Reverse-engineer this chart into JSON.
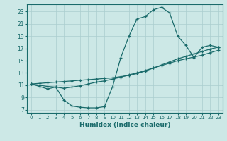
{
  "xlabel": "Humidex (Indice chaleur)",
  "bg_color": "#cce8e6",
  "line_color": "#1a6b6b",
  "grid_color": "#aacece",
  "xlim": [
    -0.5,
    23.5
  ],
  "ylim": [
    6.5,
    24.2
  ],
  "xticks": [
    0,
    1,
    2,
    3,
    4,
    5,
    6,
    7,
    8,
    9,
    10,
    11,
    12,
    13,
    14,
    15,
    16,
    17,
    18,
    19,
    20,
    21,
    22,
    23
  ],
  "yticks": [
    7,
    9,
    11,
    13,
    15,
    17,
    19,
    21,
    23
  ],
  "line1_x": [
    0,
    1,
    2,
    3,
    4,
    5,
    6,
    7,
    8,
    9,
    10,
    11,
    12,
    13,
    14,
    15,
    16,
    17,
    18,
    19,
    20,
    21,
    22,
    23
  ],
  "line1_y": [
    11.2,
    10.8,
    10.4,
    10.7,
    8.6,
    7.6,
    7.4,
    7.3,
    7.3,
    7.5,
    10.8,
    15.5,
    19.0,
    21.8,
    22.2,
    23.3,
    23.7,
    22.8,
    19.0,
    17.5,
    15.5,
    17.2,
    17.5,
    17.2
  ],
  "line2_x": [
    0,
    1,
    2,
    3,
    4,
    5,
    6,
    7,
    8,
    9,
    10,
    11,
    12,
    13,
    14,
    15,
    16,
    17,
    18,
    19,
    20,
    21,
    22,
    23
  ],
  "line2_y": [
    11.2,
    11.0,
    10.8,
    10.7,
    10.5,
    10.7,
    10.9,
    11.2,
    11.5,
    11.7,
    12.0,
    12.3,
    12.7,
    13.0,
    13.4,
    13.8,
    14.2,
    14.6,
    15.0,
    15.3,
    15.6,
    15.9,
    16.3,
    16.7
  ],
  "line3_x": [
    0,
    1,
    2,
    3,
    4,
    5,
    6,
    7,
    8,
    9,
    10,
    11,
    12,
    13,
    14,
    15,
    16,
    17,
    18,
    19,
    20,
    21,
    22,
    23
  ],
  "line3_y": [
    11.2,
    11.3,
    11.4,
    11.5,
    11.6,
    11.7,
    11.8,
    11.9,
    12.0,
    12.1,
    12.2,
    12.4,
    12.6,
    12.9,
    13.3,
    13.8,
    14.3,
    14.8,
    15.3,
    15.7,
    16.1,
    16.5,
    16.9,
    17.2
  ]
}
